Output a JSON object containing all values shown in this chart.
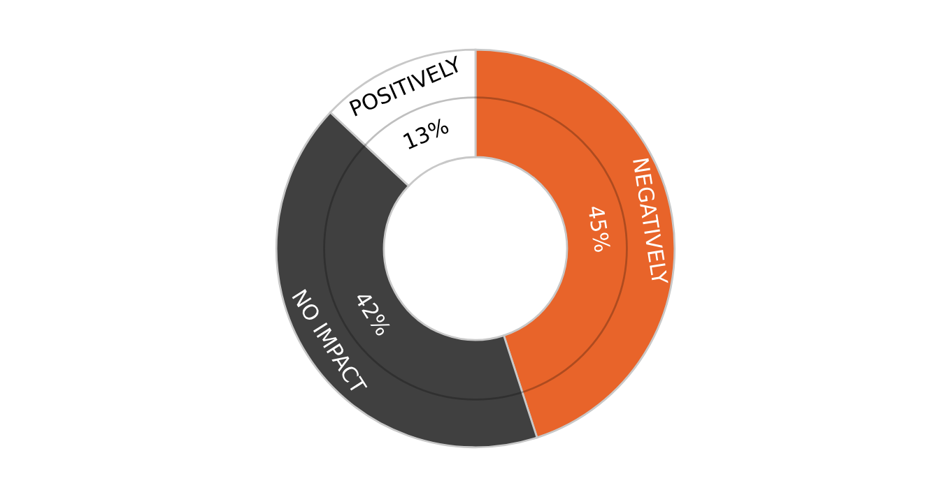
{
  "chart_data": {
    "type": "donut",
    "categories": [
      "NEGATIVELY",
      "NO IMPACT",
      "POSITIVELY"
    ],
    "values": [
      45,
      42,
      13
    ],
    "colors": [
      "#e8642a",
      "#404040",
      "#ffffff"
    ],
    "value_labels": [
      "45%",
      "42%",
      "13%"
    ]
  }
}
